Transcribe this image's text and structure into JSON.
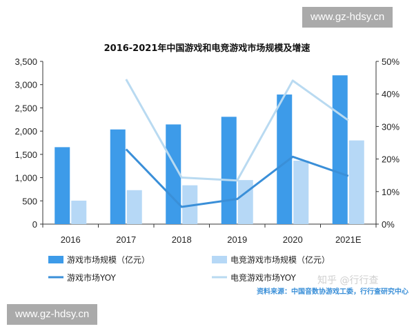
{
  "watermarks": {
    "top_right": "www.gz-hdsy.cn",
    "bottom_left": "www.gz-hdsy.cn",
    "zhihu": "知乎 @行行查"
  },
  "source_text": "资料来源：中国音数协游戏工委，行行查研究中心",
  "colors": {
    "game_market_bar": "#3d9be9",
    "esports_market_bar": "#b6d8f6",
    "game_yoy_line": "#3a8fd8",
    "esports_yoy_line": "#b9daf1",
    "axis": "#333333"
  },
  "chart_data": {
    "type": "bar",
    "title": "2016-2021年中国游戏和电竞游戏市场规模及增速",
    "categories": [
      "2016",
      "2017",
      "2018",
      "2019",
      "2020",
      "2021E"
    ],
    "y_left": {
      "min": 0,
      "max": 3500,
      "ticks": [
        "0",
        "500",
        "1,000",
        "1,500",
        "2,000",
        "2,500",
        "3,000",
        "3,500"
      ],
      "tick_values": [
        0,
        500,
        1000,
        1500,
        2000,
        2500,
        3000,
        3500
      ]
    },
    "y_right": {
      "min": 0,
      "max": 0.5,
      "ticks": [
        "0%",
        "10%",
        "20%",
        "30%",
        "40%",
        "50%"
      ],
      "tick_values": [
        0,
        0.1,
        0.2,
        0.3,
        0.4,
        0.5
      ]
    },
    "series": [
      {
        "name": "游戏市场规模（亿元）",
        "kind": "bar",
        "axis": "left",
        "color": "#3d9be9",
        "values": [
          1655,
          2036,
          2144,
          2308,
          2787,
          3200
        ]
      },
      {
        "name": "电竞游戏市场规模（亿元）",
        "kind": "bar",
        "axis": "left",
        "color": "#b6d8f6",
        "values": [
          505,
          730,
          835,
          947,
          1365,
          1800
        ]
      },
      {
        "name": "游戏市场YOY",
        "kind": "line",
        "axis": "right",
        "color": "#3a8fd8",
        "values": [
          null,
          0.23,
          0.053,
          0.077,
          0.207,
          0.148
        ]
      },
      {
        "name": "电竞游戏市场YOY",
        "kind": "line",
        "axis": "right",
        "color": "#b9daf1",
        "values": [
          null,
          0.445,
          0.143,
          0.134,
          0.441,
          0.319
        ]
      }
    ],
    "grid": false,
    "legend_position": "bottom"
  }
}
